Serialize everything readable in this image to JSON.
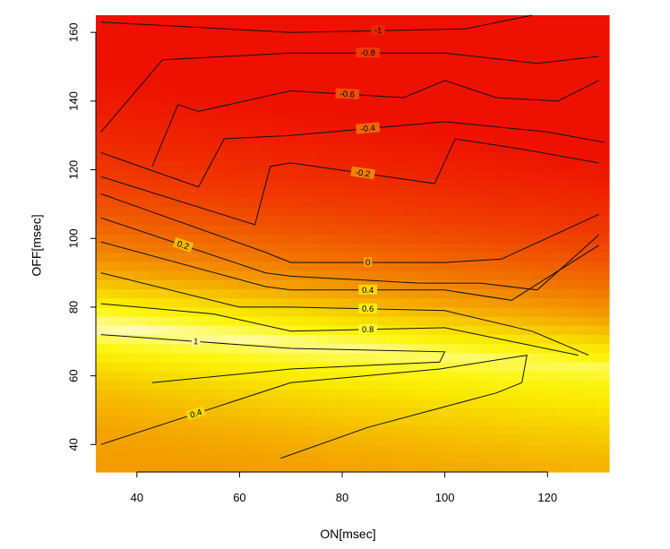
{
  "chart_data": {
    "type": "heatmap",
    "title": "",
    "xlabel": "ON[msec]",
    "ylabel": "OFF[msec]",
    "xlim": [
      32,
      132
    ],
    "ylim": [
      32,
      165
    ],
    "x_ticks": [
      "40",
      "60",
      "80",
      "100",
      "120"
    ],
    "y_ticks": [
      "40",
      "60",
      "80",
      "100",
      "120",
      "140",
      "160"
    ],
    "color_scale": {
      "palette": "heat",
      "value_range": [
        -1.2,
        1.2
      ],
      "low_color": "#ee1100",
      "mid_color": "#f4a300",
      "high_color": "#fffbe0"
    },
    "contour_levels": [
      "-1",
      "-0.8",
      "-0.6",
      "-0.4",
      "-0.2",
      "0",
      "0.2",
      "0.4",
      "0.6",
      "0.8",
      "1",
      "0.4"
    ],
    "contours": [
      {
        "level": "-1",
        "points": [
          [
            33,
            163
          ],
          [
            70,
            160
          ],
          [
            104,
            161
          ],
          [
            117,
            165
          ]
        ]
      },
      {
        "level": "-0.8",
        "points": [
          [
            33,
            131
          ],
          [
            45,
            152
          ],
          [
            70,
            154
          ],
          [
            100,
            154
          ],
          [
            118,
            151
          ],
          [
            130,
            153
          ]
        ]
      },
      {
        "level": "-0.6",
        "points": [
          [
            43,
            121
          ],
          [
            48,
            139
          ],
          [
            52,
            137
          ],
          [
            70,
            143
          ],
          [
            92,
            141
          ],
          [
            100,
            146
          ],
          [
            110,
            141
          ],
          [
            122,
            140
          ],
          [
            130,
            146
          ]
        ]
      },
      {
        "level": "-0.4",
        "points": [
          [
            33,
            125
          ],
          [
            52,
            115
          ],
          [
            57,
            129
          ],
          [
            70,
            130
          ],
          [
            100,
            134
          ],
          [
            120,
            131
          ],
          [
            131,
            128
          ]
        ]
      },
      {
        "level": "-0.2",
        "points": [
          [
            33,
            118
          ],
          [
            63,
            104
          ],
          [
            66,
            121
          ],
          [
            70,
            122
          ],
          [
            98,
            116
          ],
          [
            102,
            129
          ],
          [
            115,
            126
          ],
          [
            130,
            122
          ]
        ]
      },
      {
        "level": "0",
        "points": [
          [
            33,
            113
          ],
          [
            65,
            96
          ],
          [
            70,
            93
          ],
          [
            100,
            93
          ],
          [
            111,
            94
          ],
          [
            130,
            107
          ]
        ]
      },
      {
        "level": "0.2",
        "points": [
          [
            33,
            106
          ],
          [
            65,
            90
          ],
          [
            70,
            89
          ],
          [
            95,
            87
          ],
          [
            107,
            87
          ],
          [
            118,
            85
          ],
          [
            130,
            101
          ]
        ]
      },
      {
        "level": "0.4",
        "points": [
          [
            33,
            99
          ],
          [
            65,
            86
          ],
          [
            70,
            85
          ],
          [
            100,
            85
          ],
          [
            113,
            82
          ],
          [
            130,
            98
          ]
        ]
      },
      {
        "level": "0.6",
        "points": [
          [
            33,
            90
          ],
          [
            60,
            80
          ],
          [
            70,
            80
          ],
          [
            100,
            79
          ],
          [
            117,
            73
          ],
          [
            128,
            66
          ]
        ]
      },
      {
        "level": "0.8",
        "points": [
          [
            33,
            81
          ],
          [
            55,
            78
          ],
          [
            70,
            73
          ],
          [
            100,
            74
          ],
          [
            126,
            66
          ]
        ]
      },
      {
        "level": "1",
        "points": [
          [
            33,
            72
          ],
          [
            70,
            68
          ],
          [
            100,
            67
          ],
          [
            99,
            64
          ],
          [
            70,
            62
          ],
          [
            43,
            58
          ]
        ]
      },
      {
        "level": "0.4",
        "points": [
          [
            33,
            40
          ],
          [
            70,
            58
          ],
          [
            99,
            62
          ],
          [
            116,
            66
          ],
          [
            115,
            58
          ],
          [
            110,
            55
          ],
          [
            100,
            51
          ],
          [
            85,
            45
          ],
          [
            68,
            36
          ]
        ]
      }
    ],
    "grid": false,
    "legend": "none"
  }
}
